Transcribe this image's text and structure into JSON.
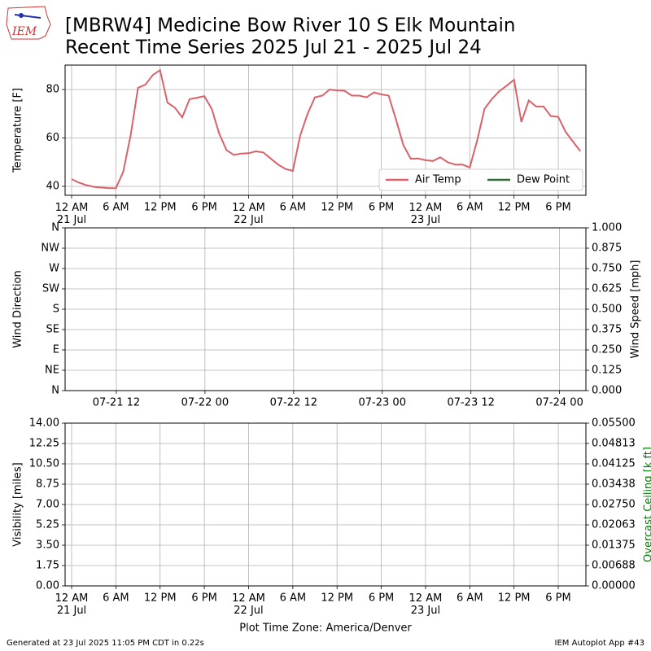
{
  "header": {
    "logo": "IEM",
    "title": [
      "[MBRW4] Medicine Bow River  10 S Elk Mountain",
      "Recent Time Series 2025 Jul 21 - 2025 Jul 24"
    ]
  },
  "footer": {
    "left": "Generated at 23 Jul 2025 11:05 PM CDT in 0.22s",
    "right": "IEM Autoplot App #43"
  },
  "chart_data": [
    {
      "type": "line",
      "ylabel": "Temperature [F]",
      "grid": true,
      "legend": "lower right",
      "xlim": [
        "2025-07-20T23:07",
        "2025-07-23T21:45"
      ],
      "xticks": [
        {
          "value": "2025-07-21T00:00",
          "label": "12 AM\n21 Jul"
        },
        {
          "value": "2025-07-21T06:00",
          "label": "6 AM"
        },
        {
          "value": "2025-07-21T12:00",
          "label": "12 PM"
        },
        {
          "value": "2025-07-21T18:00",
          "label": "6 PM"
        },
        {
          "value": "2025-07-22T00:00",
          "label": "12 AM\n22 Jul"
        },
        {
          "value": "2025-07-22T06:00",
          "label": "6 AM"
        },
        {
          "value": "2025-07-22T12:00",
          "label": "12 PM"
        },
        {
          "value": "2025-07-22T18:00",
          "label": "6 PM"
        },
        {
          "value": "2025-07-23T00:00",
          "label": "12 AM\n23 Jul"
        },
        {
          "value": "2025-07-23T06:00",
          "label": "6 AM"
        },
        {
          "value": "2025-07-23T12:00",
          "label": "12 PM"
        },
        {
          "value": "2025-07-23T18:00",
          "label": "6 PM"
        }
      ],
      "ylim": [
        36.3,
        90.1
      ],
      "yticks": [
        40,
        60,
        80
      ],
      "x": [
        "2025-07-21T00:00",
        "2025-07-21T01:00",
        "2025-07-21T02:00",
        "2025-07-21T03:00",
        "2025-07-21T04:00",
        "2025-07-21T05:00",
        "2025-07-21T06:00",
        "2025-07-21T07:00",
        "2025-07-21T08:00",
        "2025-07-21T09:00",
        "2025-07-21T10:00",
        "2025-07-21T11:00",
        "2025-07-21T12:00",
        "2025-07-21T13:00",
        "2025-07-21T14:00",
        "2025-07-21T15:00",
        "2025-07-21T16:00",
        "2025-07-21T17:00",
        "2025-07-21T18:00",
        "2025-07-21T19:00",
        "2025-07-21T20:00",
        "2025-07-21T21:00",
        "2025-07-21T22:00",
        "2025-07-21T23:00",
        "2025-07-22T00:00",
        "2025-07-22T01:00",
        "2025-07-22T02:00",
        "2025-07-22T03:00",
        "2025-07-22T04:00",
        "2025-07-22T05:00",
        "2025-07-22T06:00",
        "2025-07-22T07:00",
        "2025-07-22T08:00",
        "2025-07-22T09:00",
        "2025-07-22T10:00",
        "2025-07-22T11:00",
        "2025-07-22T12:00",
        "2025-07-22T13:00",
        "2025-07-22T14:00",
        "2025-07-22T15:00",
        "2025-07-22T16:00",
        "2025-07-22T17:00",
        "2025-07-22T18:00",
        "2025-07-22T19:00",
        "2025-07-22T20:00",
        "2025-07-22T21:00",
        "2025-07-22T22:00",
        "2025-07-22T23:00",
        "2025-07-23T00:00",
        "2025-07-23T01:00",
        "2025-07-23T02:00",
        "2025-07-23T03:00",
        "2025-07-23T04:00",
        "2025-07-23T05:00",
        "2025-07-23T06:00",
        "2025-07-23T07:00",
        "2025-07-23T08:00",
        "2025-07-23T09:00",
        "2025-07-23T10:00",
        "2025-07-23T11:00",
        "2025-07-23T12:00",
        "2025-07-23T13:00",
        "2025-07-23T14:00",
        "2025-07-23T15:00",
        "2025-07-23T16:00",
        "2025-07-23T17:00",
        "2025-07-23T18:00",
        "2025-07-23T19:00",
        "2025-07-23T20:00",
        "2025-07-23T21:00"
      ],
      "series": [
        {
          "name": "Air Temp",
          "color": "#d9626a",
          "values": [
            43,
            41.5,
            40.5,
            39.8,
            39.5,
            39.3,
            39.2,
            46,
            61,
            80.7,
            82,
            86,
            88,
            74.6,
            72.5,
            68.5,
            76,
            76.6,
            77.3,
            72,
            62,
            55,
            53,
            53.5,
            53.7,
            54.5,
            54,
            51.5,
            49,
            47.2,
            46.4,
            61,
            70,
            76.8,
            77.5,
            80,
            79.6,
            79.5,
            77.5,
            77.5,
            76.8,
            78.8,
            78,
            77.5,
            67.5,
            57,
            51.4,
            51.5,
            50.8,
            50.5,
            52,
            50,
            49,
            49,
            47.8,
            59,
            72,
            76.1,
            79.3,
            81.6,
            84,
            66.6,
            75.5,
            73,
            73,
            69,
            68.7,
            62.5,
            58.5,
            54.5
          ]
        },
        {
          "name": "Dew Point",
          "color": "#2e6b30",
          "values": [
            null,
            null,
            null,
            null,
            null,
            null,
            null,
            null,
            null,
            null,
            null,
            null,
            null,
            null,
            null,
            null,
            null,
            null,
            null,
            null,
            null,
            null,
            null,
            null,
            null,
            null,
            null,
            null,
            null,
            null,
            null,
            null,
            null,
            null,
            null,
            null,
            null,
            null,
            null,
            null,
            null,
            null,
            null,
            null,
            null,
            null,
            null,
            null,
            null,
            null,
            null,
            null,
            null,
            null,
            null,
            null,
            null,
            null,
            null,
            null,
            null,
            null,
            null,
            null,
            null,
            null,
            null,
            null,
            null,
            null
          ]
        }
      ]
    },
    {
      "type": "line",
      "ylabel": "Wind Direction",
      "y2label": "Wind Speed [mph]",
      "grid": true,
      "xlim": [
        "2025-07-21T05:04",
        "2025-07-24T03:34"
      ],
      "xticks": [
        {
          "value": "2025-07-21T12:00",
          "label": "07-21 12"
        },
        {
          "value": "2025-07-22T00:00",
          "label": "07-22 00"
        },
        {
          "value": "2025-07-22T12:00",
          "label": "07-22 12"
        },
        {
          "value": "2025-07-23T00:00",
          "label": "07-23 00"
        },
        {
          "value": "2025-07-23T12:00",
          "label": "07-23 12"
        },
        {
          "value": "2025-07-24T00:00",
          "label": "07-24 00"
        }
      ],
      "ylim": [
        0,
        360
      ],
      "yticks": [
        {
          "value": 0,
          "label": "N"
        },
        {
          "value": 45,
          "label": "NE"
        },
        {
          "value": 90,
          "label": "E"
        },
        {
          "value": 135,
          "label": "SE"
        },
        {
          "value": 180,
          "label": "S"
        },
        {
          "value": 225,
          "label": "SW"
        },
        {
          "value": 270,
          "label": "W"
        },
        {
          "value": 315,
          "label": "NW"
        },
        {
          "value": 360,
          "label": "N"
        }
      ],
      "y2lim": [
        0,
        1
      ],
      "y2ticks": [
        {
          "value": 0,
          "label": "0.000"
        },
        0.125,
        {
          "value": 0.25,
          "label": "0.250"
        },
        0.375,
        {
          "value": 0.5,
          "label": "0.500"
        },
        0.625,
        {
          "value": 0.75,
          "label": "0.750"
        },
        0.875,
        {
          "value": 1,
          "label": "1.000"
        }
      ]
    },
    {
      "type": "line",
      "ylabel": "Visibility [miles]",
      "y2label": "Overcast Ceiling [k ft]",
      "y2label_color": "#008000",
      "xlabel": "Plot Time Zone: America/Denver",
      "grid": true,
      "xlim": [
        "2025-07-20T23:07",
        "2025-07-23T21:45"
      ],
      "xticks": [
        {
          "value": "2025-07-21T00:00",
          "label": "12 AM\n21 Jul"
        },
        {
          "value": "2025-07-21T06:00",
          "label": "6 AM"
        },
        {
          "value": "2025-07-21T12:00",
          "label": "12 PM"
        },
        {
          "value": "2025-07-21T18:00",
          "label": "6 PM"
        },
        {
          "value": "2025-07-22T00:00",
          "label": "12 AM\n22 Jul"
        },
        {
          "value": "2025-07-22T06:00",
          "label": "6 AM"
        },
        {
          "value": "2025-07-22T12:00",
          "label": "12 PM"
        },
        {
          "value": "2025-07-22T18:00",
          "label": "6 PM"
        },
        {
          "value": "2025-07-23T00:00",
          "label": "12 AM\n23 Jul"
        },
        {
          "value": "2025-07-23T06:00",
          "label": "6 AM"
        },
        {
          "value": "2025-07-23T12:00",
          "label": "12 PM"
        },
        {
          "value": "2025-07-23T18:00",
          "label": "6 PM"
        }
      ],
      "ylim": [
        0,
        14
      ],
      "yticks": [
        {
          "value": 0,
          "label": "0.00"
        },
        1.75,
        {
          "value": 3.5,
          "label": "3.50"
        },
        5.25,
        {
          "value": 7,
          "label": "7.00"
        },
        8.75,
        {
          "value": 10.5,
          "label": "10.50"
        },
        12.25,
        {
          "value": 14,
          "label": "14.00"
        }
      ],
      "y2lim": [
        0,
        0.055
      ],
      "y2ticks": [
        {
          "value": 0,
          "label": "0.00000"
        },
        {
          "value": 0.006875,
          "label": "0.00688"
        },
        0.01375,
        {
          "value": 0.020625,
          "label": "0.02063"
        },
        {
          "value": 0.0275,
          "label": "0.02750"
        },
        {
          "value": 0.034375,
          "label": "0.03438"
        },
        0.04125,
        {
          "value": 0.048125,
          "label": "0.04813"
        },
        {
          "value": 0.055,
          "label": "0.05500"
        }
      ]
    }
  ]
}
